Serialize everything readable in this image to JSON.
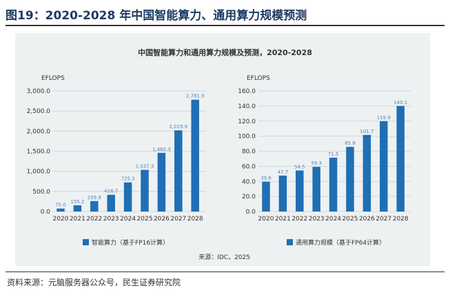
{
  "figure_title": "图19：2020-2028 年中国智能算力、通用算力规模预测",
  "figure_source": "资料来源：元脑服务器公众号，民生证券研究院",
  "inner_source": "来源：IDC，2025",
  "colors": {
    "bar": "#1f6fb5",
    "label": "#4a86c5",
    "panel": "#eef1f2",
    "title": "#1d3b63"
  },
  "chart_data": [
    {
      "type": "bar",
      "title": "中国智能算力和通用算力规模及预测，2020-2028",
      "ylabel": "EFLOPS",
      "categories": [
        "2020",
        "2021",
        "2022",
        "2023",
        "2024",
        "2025",
        "2026",
        "2027",
        "2028"
      ],
      "values": [
        75.0,
        155.2,
        259.9,
        416.7,
        725.3,
        1037.3,
        1460.3,
        2019.9,
        2781.9
      ],
      "value_labels": [
        "75.0",
        "155.2",
        "259.9",
        "416.7",
        "725.3",
        "1,037.3",
        "1,460.3",
        "2,019.9",
        "2,781.9"
      ],
      "ylim": [
        0,
        3000
      ],
      "yticks": [
        "0.0",
        "500.0",
        "1,000.0",
        "1,500.0",
        "2,000.0",
        "2,500.0",
        "3,000.0"
      ],
      "legend": "智能算力（基于FP16计算）"
    },
    {
      "type": "bar",
      "title": "中国智能算力和通用算力规模及预测，2020-2028",
      "ylabel": "EFLOPS",
      "categories": [
        "2020",
        "2021",
        "2022",
        "2023",
        "2024",
        "2025",
        "2026",
        "2027",
        "2028"
      ],
      "values": [
        39.6,
        47.7,
        54.5,
        59.3,
        71.5,
        85.8,
        101.7,
        119.9,
        140.1
      ],
      "value_labels": [
        "39.6",
        "47.7",
        "54.5",
        "59.3",
        "71.5",
        "85.8",
        "101.7",
        "119.9",
        "140.1"
      ],
      "ylim": [
        0,
        160
      ],
      "yticks": [
        "0.0",
        "20.0",
        "40.0",
        "60.0",
        "80.0",
        "100.0",
        "120.0",
        "140.0",
        "160.0"
      ],
      "legend": "通用算力规模（基于FP64计算）"
    }
  ]
}
